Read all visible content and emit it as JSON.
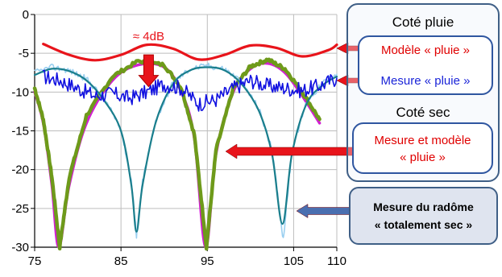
{
  "chart_data": {
    "type": "line",
    "x_ticks": [
      "75",
      "85",
      "95",
      "105",
      "110"
    ],
    "y_ticks": [
      "0",
      "-5",
      "-10",
      "-15",
      "-20",
      "-25",
      "-30"
    ],
    "xlim": [
      75,
      110
    ],
    "ylim": [
      -30,
      0
    ],
    "grid": true,
    "series": [
      {
        "id": "model-rain",
        "color": "#e8141b",
        "points": [
          [
            76,
            -3.8
          ],
          [
            79,
            -5.2
          ],
          [
            82,
            -5.9
          ],
          [
            85,
            -5.2
          ],
          [
            88,
            -3.9
          ],
          [
            91,
            -4.4
          ],
          [
            94,
            -5.8
          ],
          [
            97,
            -5.2
          ],
          [
            100,
            -4.0
          ],
          [
            103,
            -4.3
          ],
          [
            106,
            -5.4
          ],
          [
            109,
            -4.6
          ],
          [
            110,
            -3.9
          ]
        ]
      },
      {
        "id": "meas-rain",
        "color": "#1111e0",
        "points": [
          [
            76,
            -8.0
          ],
          [
            78,
            -8.5
          ],
          [
            80,
            -9.5
          ],
          [
            82,
            -10.5
          ],
          [
            84,
            -10.2
          ],
          [
            86,
            -10.8
          ],
          [
            88,
            -10.0
          ],
          [
            90,
            -9.0
          ],
          [
            92,
            -9.5
          ],
          [
            94,
            -11.5
          ],
          [
            96,
            -11.0
          ],
          [
            98,
            -9.5
          ],
          [
            100,
            -8.5
          ],
          [
            102,
            -9.2
          ],
          [
            104,
            -9.5
          ],
          [
            106,
            -9.8
          ],
          [
            108,
            -9.2
          ],
          [
            110,
            -8.2
          ]
        ]
      },
      {
        "id": "dry-model-1",
        "color": "#d21fd2",
        "points": [
          [
            75,
            -10.0
          ],
          [
            76,
            -14.0
          ],
          [
            77,
            -22.0
          ],
          [
            77.8,
            -30.0
          ],
          [
            79,
            -22.0
          ],
          [
            81,
            -14.0
          ],
          [
            84,
            -8.5
          ],
          [
            87,
            -6.5
          ],
          [
            90,
            -6.8
          ],
          [
            92,
            -10.0
          ],
          [
            93.5,
            -16.0
          ],
          [
            94.8,
            -30.0
          ],
          [
            96,
            -18.0
          ],
          [
            98,
            -10.0
          ],
          [
            100,
            -7.0
          ],
          [
            102,
            -6.3
          ],
          [
            104,
            -7.5
          ],
          [
            106,
            -10.5
          ],
          [
            108,
            -14.0
          ]
        ]
      },
      {
        "id": "dry-meas-1",
        "color": "#6e9a1a",
        "points": [
          [
            75,
            -9.5
          ],
          [
            76,
            -13.5
          ],
          [
            77,
            -21.0
          ],
          [
            77.9,
            -30.0
          ],
          [
            79,
            -21.0
          ],
          [
            81,
            -13.0
          ],
          [
            84,
            -8.0
          ],
          [
            87,
            -6.0
          ],
          [
            90,
            -6.5
          ],
          [
            92,
            -9.5
          ],
          [
            93.5,
            -15.5
          ],
          [
            94.9,
            -30.0
          ],
          [
            96,
            -17.5
          ],
          [
            98,
            -9.5
          ],
          [
            100,
            -6.7
          ],
          [
            102,
            -5.8
          ],
          [
            104,
            -7.0
          ],
          [
            106,
            -10.0
          ],
          [
            108,
            -13.5
          ]
        ]
      },
      {
        "id": "dry-model-2",
        "color": "#1a7e8c",
        "points": [
          [
            75,
            -7.8
          ],
          [
            77,
            -7.0
          ],
          [
            79,
            -7.3
          ],
          [
            81,
            -8.5
          ],
          [
            83,
            -11.0
          ],
          [
            85,
            -15.0
          ],
          [
            86.2,
            -22.0
          ],
          [
            86.8,
            -28.0
          ],
          [
            87.5,
            -22.0
          ],
          [
            89,
            -14.0
          ],
          [
            91,
            -9.0
          ],
          [
            93,
            -7.2
          ],
          [
            95,
            -6.8
          ],
          [
            97,
            -7.2
          ],
          [
            99,
            -9.0
          ],
          [
            101,
            -12.5
          ],
          [
            102.5,
            -18.0
          ],
          [
            103.7,
            -27.0
          ],
          [
            104.8,
            -18.0
          ],
          [
            106.5,
            -11.5
          ],
          [
            108.5,
            -9.0
          ],
          [
            110,
            -8.0
          ]
        ]
      },
      {
        "id": "dry-meas-2",
        "color": "#9acff0",
        "points": [
          [
            75,
            -7.5
          ],
          [
            77,
            -6.8
          ],
          [
            79,
            -7.2
          ],
          [
            81,
            -8.3
          ],
          [
            83,
            -10.8
          ],
          [
            85,
            -14.7
          ],
          [
            86.2,
            -21.5
          ],
          [
            86.8,
            -28.5
          ],
          [
            87.5,
            -21.5
          ],
          [
            89,
            -13.7
          ],
          [
            91,
            -8.8
          ],
          [
            93,
            -7.0
          ],
          [
            95,
            -6.6
          ],
          [
            97,
            -7.0
          ],
          [
            99,
            -8.7
          ],
          [
            101,
            -12.2
          ],
          [
            102.5,
            -17.5
          ],
          [
            103.8,
            -29.0
          ],
          [
            104.8,
            -17.5
          ],
          [
            106.5,
            -11.2
          ],
          [
            108.5,
            -8.7
          ],
          [
            110,
            -7.7
          ]
        ]
      }
    ]
  },
  "annotation": {
    "label": "≈ 4dB",
    "x": 88.2,
    "y_top": -5.2,
    "y_bottom": -9.3
  },
  "legend": {
    "rain_title": "Coté pluie",
    "rain_model": "Modèle « pluie »",
    "rain_meas": "Mesure « pluie »",
    "dry_title": "Coté sec",
    "dry_line1": "Mesure  et modèle",
    "dry_line2": "« pluie »",
    "dry_sec_line1": "Mesure du radôme",
    "dry_sec_line2": "« totalement sec »"
  },
  "colors": {
    "arrow_red": "#e8141b",
    "arrow_blue": "#4a6fb0",
    "grid": "#bdbdbd"
  }
}
